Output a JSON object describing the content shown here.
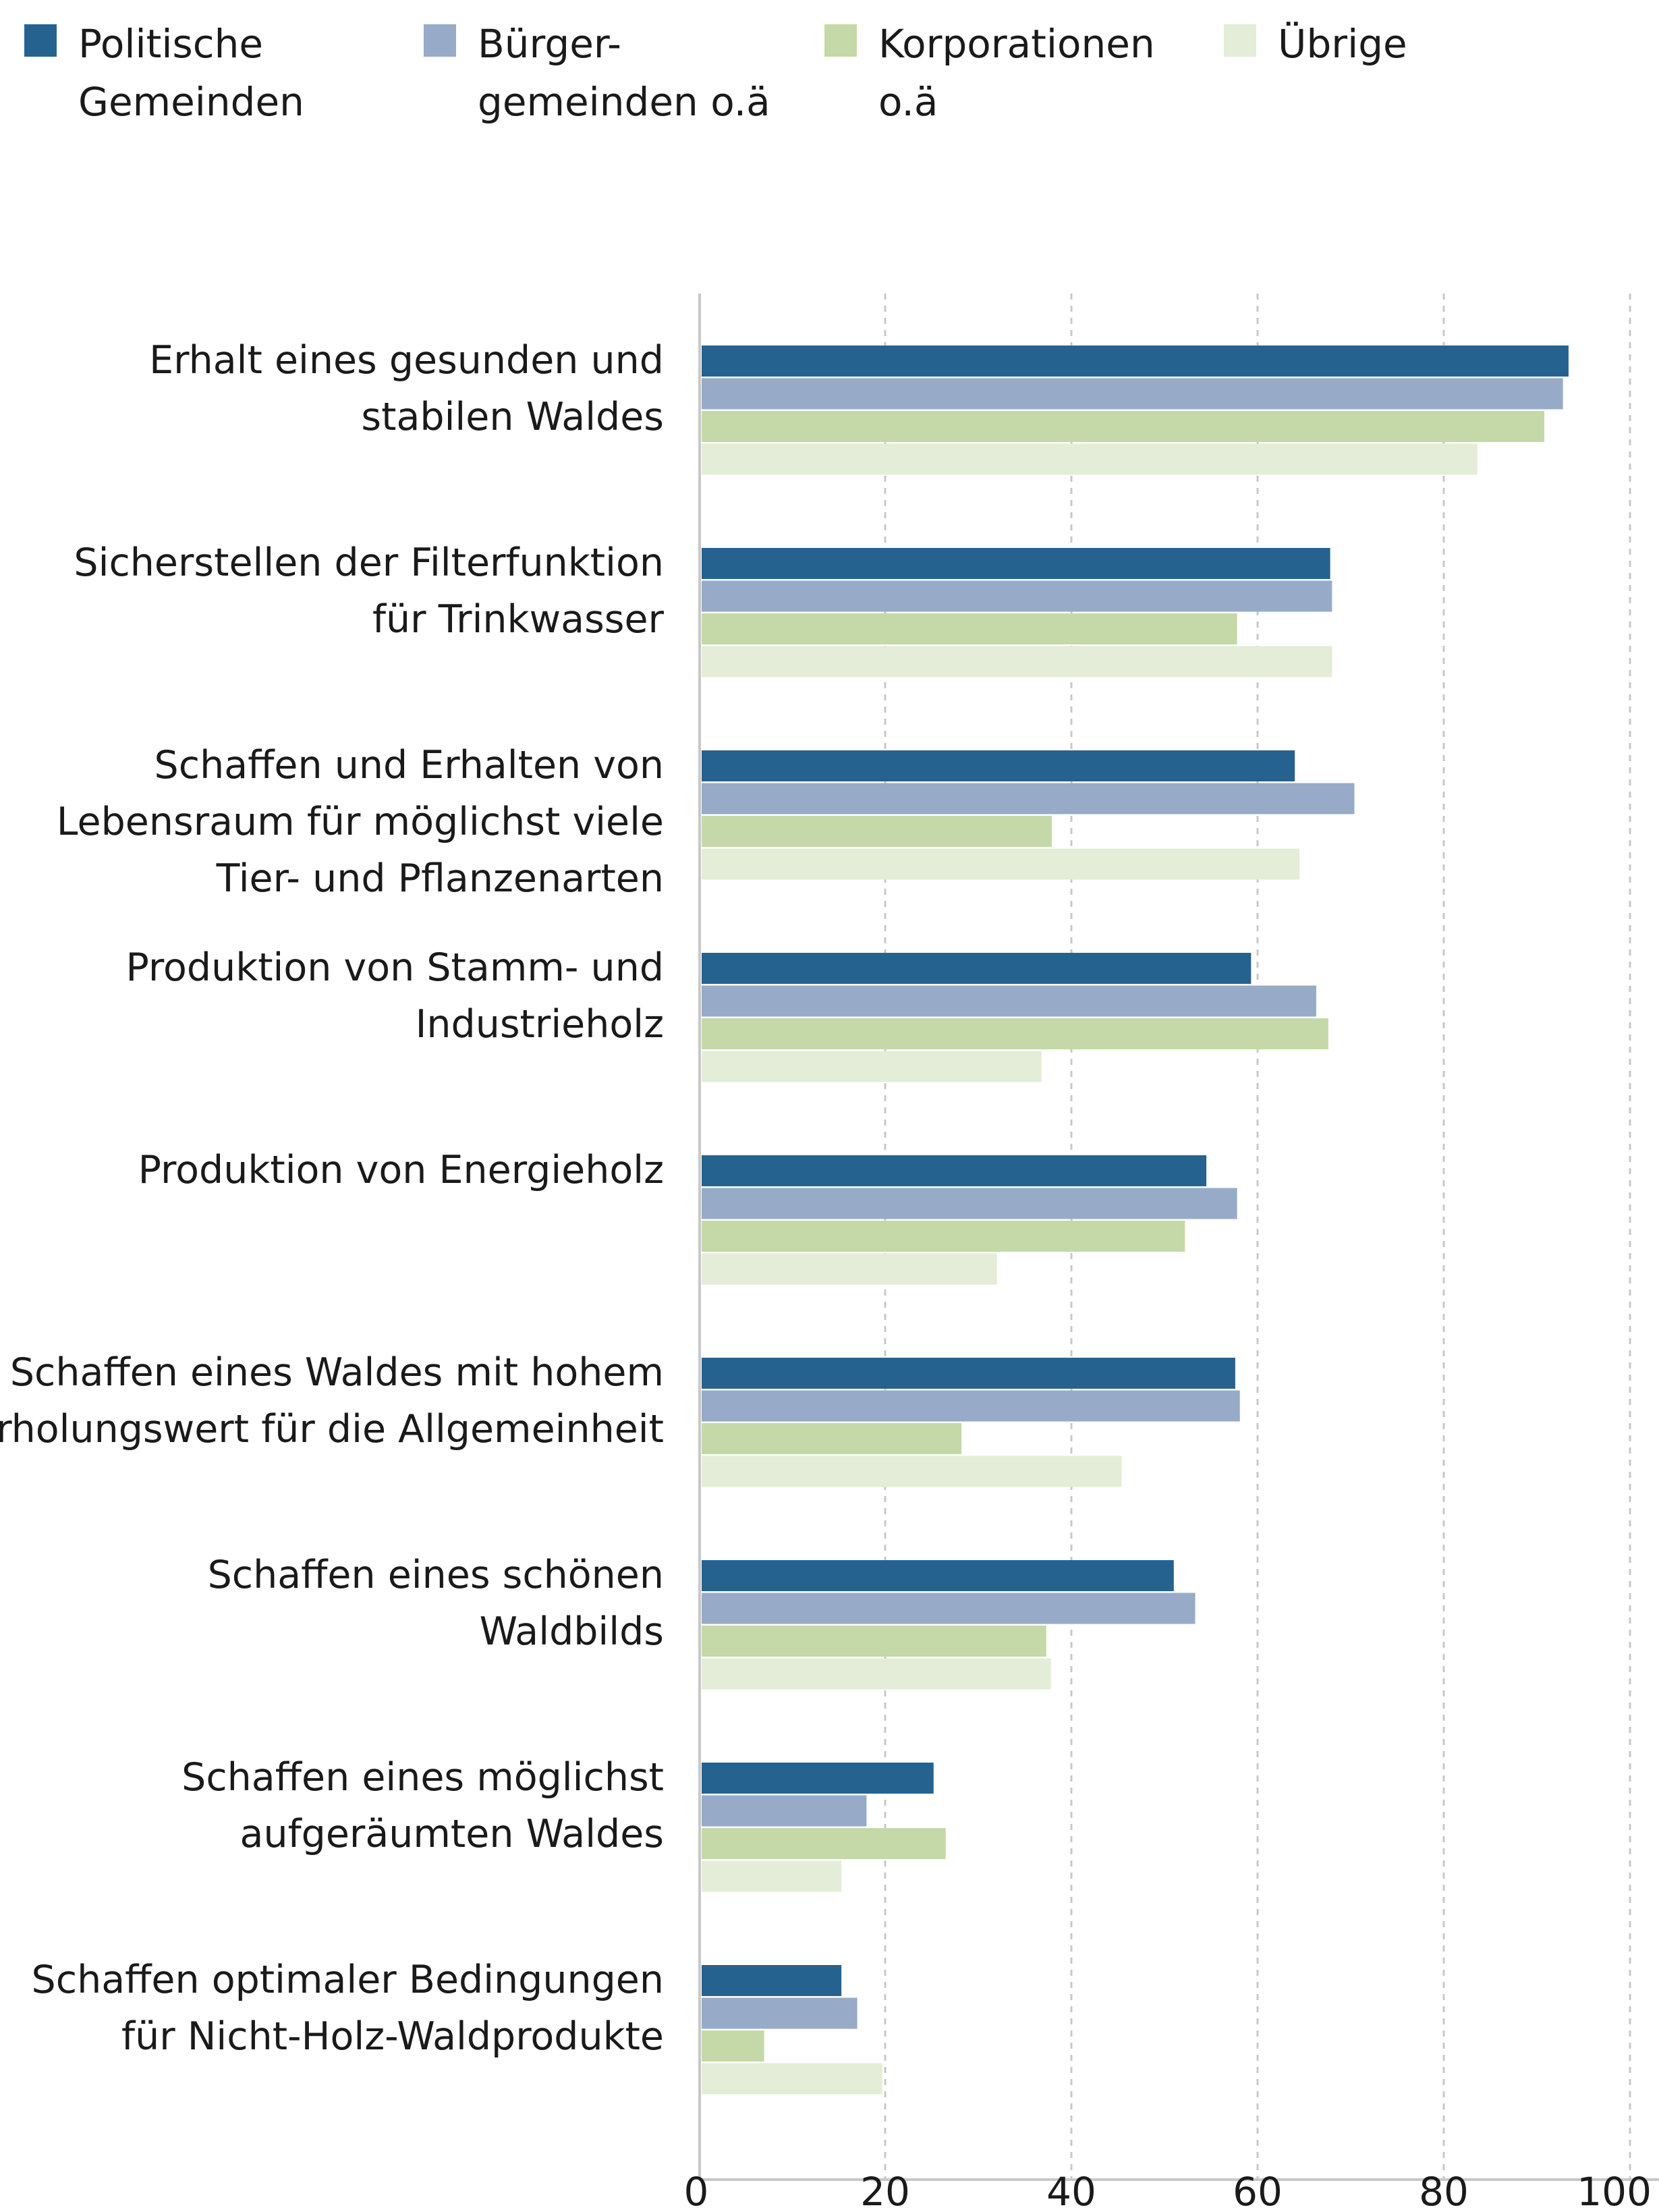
{
  "legend": {
    "items": [
      {
        "label": "Politische\nGemeinden",
        "color": "#26628f"
      },
      {
        "label": "Bürger-\ngemeinden o.ä",
        "color": "#97abc9"
      },
      {
        "label": "Korporationen\no.ä",
        "color": "#c4d9a7"
      },
      {
        "label": "Übrige",
        "color": "#e3edd8"
      }
    ]
  },
  "chart_data": {
    "type": "bar",
    "orientation": "horizontal",
    "categories": [
      [
        "Erhalt eines gesunden und",
        "stabilen Waldes"
      ],
      [
        "Sicherstellen der Filterfunktion",
        "für Trinkwasser"
      ],
      [
        "Schaffen und Erhalten von",
        "Lebensraum für möglichst viele",
        "Tier- und Pflanzenarten"
      ],
      [
        "Produktion von Stamm- und",
        "Industrieholz"
      ],
      [
        "Produktion von Energieholz"
      ],
      [
        "Schaffen eines Waldes mit hohem",
        "Erholungswert für die Allgemeinheit"
      ],
      [
        "Schaffen eines schönen",
        "Waldbilds"
      ],
      [
        "Schaffen eines möglichst",
        "aufgeräumten Waldes"
      ],
      [
        "Schaffen optimaler Bedingungen",
        "für Nicht-Holz-Waldprodukte"
      ]
    ],
    "series": [
      {
        "name": "Politische Gemeinden",
        "color": "#26628f",
        "values": [
          93.4,
          67.8,
          64.0,
          59.3,
          54.5,
          57.6,
          51.0,
          25.2,
          15.3
        ]
      },
      {
        "name": "Bürgergemeinden o.ä",
        "color": "#97abc9",
        "values": [
          92.8,
          68.0,
          70.4,
          66.3,
          57.8,
          58.1,
          53.3,
          18.0,
          17.0
        ]
      },
      {
        "name": "Korporationen o.ä",
        "color": "#c4d9a7",
        "values": [
          90.8,
          57.8,
          37.9,
          67.6,
          52.2,
          28.2,
          37.3,
          26.5,
          7.0
        ]
      },
      {
        "name": "Übrige",
        "color": "#e3edd8",
        "values": [
          83.6,
          68.0,
          64.5,
          36.8,
          32.0,
          45.4,
          37.8,
          15.3,
          19.7
        ]
      }
    ],
    "xlim": [
      0,
      100
    ],
    "xticks": [
      0,
      20,
      40,
      60,
      80,
      100
    ],
    "grid": "vertical-dashed",
    "legend_position": "top"
  }
}
